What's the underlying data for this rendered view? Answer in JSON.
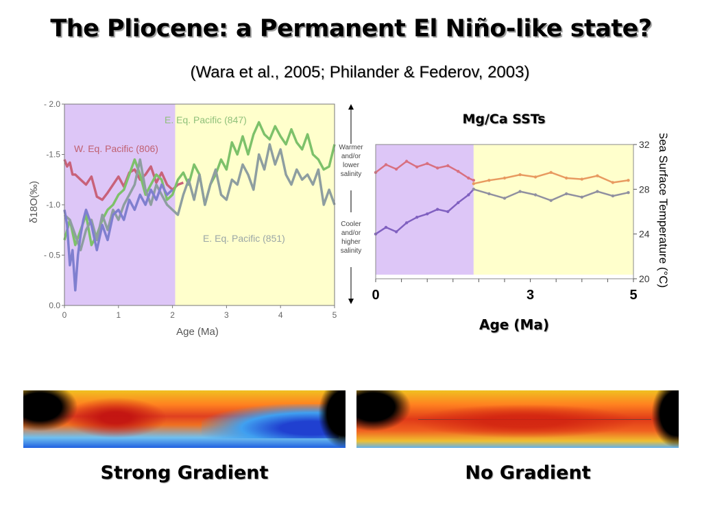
{
  "title": "The Pliocene: a Permanent El Niño-like state?",
  "subtitle": "(Wara et al., 2005; Philander & Federov, 2003)",
  "chart_data": [
    {
      "type": "line",
      "xlabel": "Age (Ma)",
      "ylabel": "δ18O(‰)",
      "xlim": [
        0,
        5
      ],
      "ylim": [
        0.0,
        -2.0
      ],
      "x_ticks": [
        "0",
        "1",
        "2",
        "3",
        "4",
        "5"
      ],
      "y_ticks": [
        "- 2.0",
        "-1.5",
        "-1.0",
        "- 0.5",
        "0.0"
      ],
      "shaded_regions": [
        {
          "x0": 0,
          "x1": 2.05,
          "color": "#ddc6f7"
        },
        {
          "x0": 2.05,
          "x1": 5,
          "color": "#ffffcc"
        }
      ],
      "side_annotations": {
        "up": "Warmer and/or lower salinity",
        "down": "Cooler and/or higher salinity"
      },
      "series": [
        {
          "name": "W. Eq. Pacific (806)",
          "color": "#c8627a",
          "x": [
            0,
            0.05,
            0.1,
            0.15,
            0.2,
            0.3,
            0.4,
            0.5,
            0.6,
            0.7,
            0.8,
            0.9,
            1.0,
            1.1,
            1.2,
            1.3,
            1.4,
            1.5,
            1.6,
            1.7,
            1.8,
            1.9,
            2.0,
            2.1,
            2.2
          ],
          "y": [
            -1.45,
            -1.38,
            -1.42,
            -1.3,
            -1.3,
            -1.25,
            -1.2,
            -1.28,
            -1.08,
            -1.05,
            -1.12,
            -1.2,
            -1.28,
            -1.18,
            -1.32,
            -1.35,
            -1.25,
            -1.3,
            -1.38,
            -1.22,
            -1.32,
            -1.2,
            -1.15,
            -1.2,
            -1.22
          ]
        },
        {
          "name": "E. Eq. Pacific (847)",
          "color": "#7dc16a",
          "x": [
            0,
            0.1,
            0.2,
            0.3,
            0.4,
            0.5,
            0.6,
            0.7,
            0.8,
            0.9,
            1.0,
            1.1,
            1.2,
            1.3,
            1.4,
            1.5,
            1.6,
            1.7,
            1.8,
            1.9,
            2.0,
            2.1,
            2.2,
            2.3,
            2.4,
            2.5,
            2.6,
            2.7,
            2.8,
            2.9,
            3.0,
            3.1,
            3.2,
            3.3,
            3.4,
            3.5,
            3.6,
            3.7,
            3.8,
            3.9,
            4.0,
            4.1,
            4.2,
            4.3,
            4.4,
            4.5,
            4.6,
            4.7,
            4.8,
            4.9,
            5.0
          ],
          "y": [
            -0.65,
            -0.85,
            -0.6,
            -0.75,
            -0.9,
            -0.6,
            -0.7,
            -0.85,
            -0.95,
            -1.0,
            -1.1,
            -1.15,
            -1.3,
            -1.45,
            -1.3,
            -1.1,
            -1.2,
            -1.3,
            -1.25,
            -1.05,
            -1.1,
            -1.25,
            -1.32,
            -1.2,
            -1.4,
            -1.3,
            -1.0,
            -1.2,
            -1.3,
            -1.45,
            -1.35,
            -1.62,
            -1.5,
            -1.68,
            -1.5,
            -1.7,
            -1.82,
            -1.7,
            -1.65,
            -1.78,
            -1.68,
            -1.6,
            -1.75,
            -1.62,
            -1.55,
            -1.7,
            -1.5,
            -1.45,
            -1.35,
            -1.38,
            -1.6
          ]
        },
        {
          "name": "E. Eq. Pacific (851)",
          "color": "#8e9ea0",
          "x": [
            0,
            0.1,
            0.2,
            0.3,
            0.4,
            0.5,
            0.6,
            0.7,
            0.8,
            0.9,
            1.0,
            1.1,
            1.2,
            1.3,
            1.4,
            1.5,
            1.6,
            1.7,
            1.8,
            1.9,
            2.0,
            2.1,
            2.2,
            2.3,
            2.4,
            2.5,
            2.6,
            2.7,
            2.8,
            2.9,
            3.0,
            3.1,
            3.2,
            3.3,
            3.4,
            3.5,
            3.6,
            3.7,
            3.8,
            3.9,
            4.0,
            4.1,
            4.2,
            4.3,
            4.4,
            4.5,
            4.6,
            4.7,
            4.8,
            4.9,
            5.0
          ],
          "y": [
            -0.9,
            -0.85,
            -0.7,
            -0.55,
            -0.75,
            -0.85,
            -0.65,
            -0.9,
            -0.75,
            -0.95,
            -0.85,
            -1.0,
            -1.1,
            -1.2,
            -1.45,
            -1.15,
            -1.0,
            -1.2,
            -1.1,
            -1.0,
            -0.95,
            -0.9,
            -1.1,
            -1.25,
            -1.05,
            -1.3,
            -1.0,
            -1.2,
            -1.35,
            -1.1,
            -1.05,
            -1.25,
            -1.2,
            -1.4,
            -1.3,
            -1.15,
            -1.5,
            -1.35,
            -1.6,
            -1.4,
            -1.55,
            -1.3,
            -1.2,
            -1.35,
            -1.25,
            -1.3,
            -1.2,
            -1.35,
            -1.0,
            -1.15,
            -1.0
          ]
        },
        {
          "name": "",
          "color": "#7f7fcf",
          "x": [
            0,
            0.05,
            0.1,
            0.15,
            0.2,
            0.25,
            0.3,
            0.35,
            0.4,
            0.5,
            0.6,
            0.7,
            0.8,
            0.9,
            1.0,
            1.1,
            1.2,
            1.3,
            1.4,
            1.5,
            1.6,
            1.7,
            1.8,
            1.9,
            2.0
          ],
          "y": [
            -0.95,
            -0.8,
            -0.4,
            -0.55,
            -0.15,
            -0.5,
            -0.7,
            -0.85,
            -0.95,
            -0.8,
            -0.55,
            -0.8,
            -0.65,
            -0.9,
            -0.95,
            -0.85,
            -1.05,
            -0.95,
            -1.1,
            -1.0,
            -1.15,
            -1.05,
            -1.2,
            -1.1,
            -1.15
          ]
        }
      ]
    },
    {
      "type": "scatter",
      "title": "Mg/Ca SSTs",
      "xlabel": "Age (Ma)",
      "ylabel": "Sea Surface Temperature (°C)",
      "xlim": [
        0,
        5
      ],
      "ylim": [
        20,
        32
      ],
      "x_ticks": [
        "0",
        "3",
        "5"
      ],
      "y_ticks": [
        "32",
        "28",
        "24",
        "20"
      ],
      "shaded_regions": [
        {
          "x0": 0,
          "x1": 1.9,
          "color": "#ddc6f7"
        },
        {
          "x0": 1.9,
          "x1": 5,
          "color": "#ffffcc"
        }
      ],
      "series": [
        {
          "name": "",
          "color": "#d87080",
          "x": [
            0,
            0.2,
            0.4,
            0.6,
            0.8,
            1.0,
            1.2,
            1.4,
            1.6,
            1.8,
            1.9
          ],
          "y": [
            29.5,
            30.2,
            29.8,
            30.5,
            30.0,
            30.3,
            29.9,
            30.1,
            29.6,
            29.0,
            28.8
          ]
        },
        {
          "name": "",
          "color": "#8060c0",
          "x": [
            0,
            0.2,
            0.4,
            0.6,
            0.8,
            1.0,
            1.2,
            1.4,
            1.6,
            1.8,
            1.9
          ],
          "y": [
            24.0,
            24.6,
            24.2,
            25.0,
            25.5,
            25.8,
            26.2,
            26.0,
            26.8,
            27.5,
            28.0
          ]
        },
        {
          "name": "",
          "color": "#e89a60",
          "x": [
            1.9,
            2.2,
            2.5,
            2.8,
            3.1,
            3.4,
            3.7,
            4.0,
            4.3,
            4.6,
            4.9
          ],
          "y": [
            28.5,
            28.8,
            29.0,
            29.3,
            29.1,
            29.5,
            29.0,
            28.9,
            29.2,
            28.6,
            28.8
          ]
        },
        {
          "name": "",
          "color": "#9090a0",
          "x": [
            1.9,
            2.2,
            2.5,
            2.8,
            3.1,
            3.4,
            3.7,
            4.0,
            4.3,
            4.6,
            4.9
          ],
          "y": [
            28.0,
            27.6,
            27.2,
            27.8,
            27.5,
            27.0,
            27.6,
            27.3,
            27.8,
            27.4,
            27.7
          ]
        }
      ]
    }
  ],
  "maps": [
    {
      "caption": "Strong Gradient"
    },
    {
      "caption": "No Gradient"
    }
  ]
}
